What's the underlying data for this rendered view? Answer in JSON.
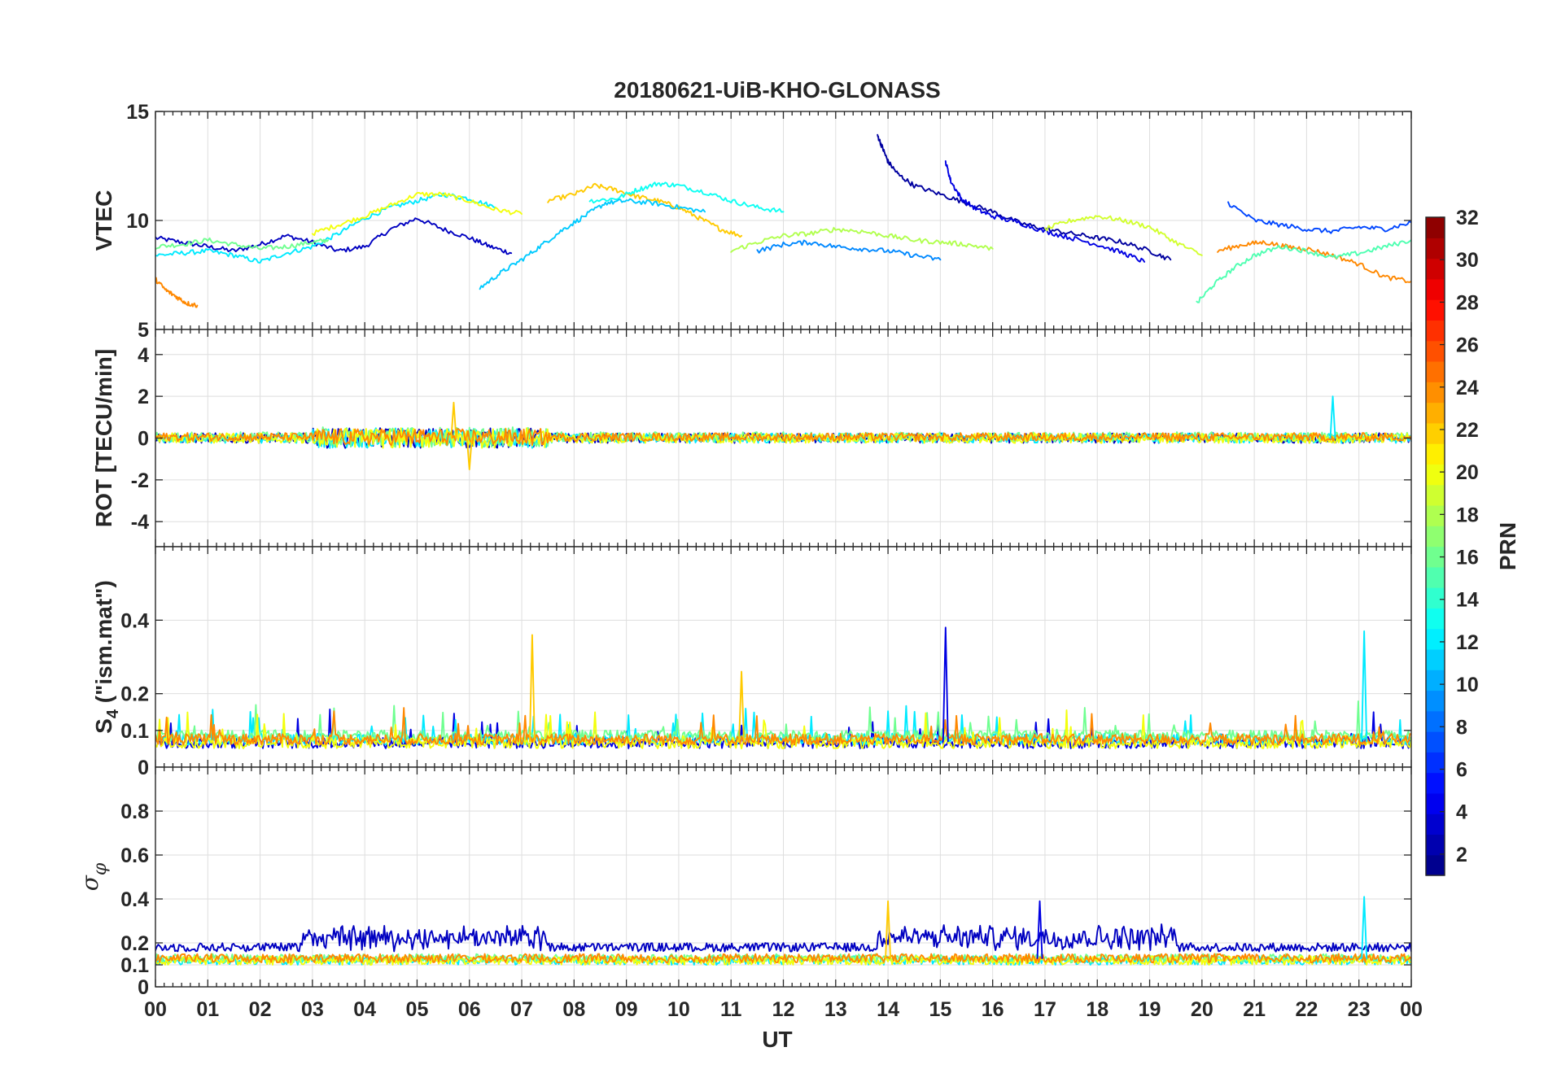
{
  "chart_data": {
    "type": "line",
    "title": "20180621-UiB-KHO-GLONASS",
    "xlabel": "UT",
    "x_tick_labels": [
      "00",
      "01",
      "02",
      "03",
      "04",
      "05",
      "06",
      "07",
      "08",
      "09",
      "10",
      "11",
      "12",
      "13",
      "14",
      "15",
      "16",
      "17",
      "18",
      "19",
      "20",
      "21",
      "22",
      "23",
      "00"
    ],
    "xlim": [
      0,
      24
    ],
    "grid": true,
    "colormap": "jet",
    "colorbar": {
      "label": "PRN",
      "range": [
        1,
        32
      ],
      "ticks": [
        2,
        4,
        6,
        8,
        10,
        12,
        14,
        16,
        18,
        20,
        22,
        24,
        26,
        28,
        30,
        32
      ],
      "placement": "right"
    },
    "panels": [
      {
        "id": "vtec",
        "ylabel": "VTEC",
        "ylim": [
          5,
          15
        ],
        "yticks": [
          5,
          10,
          15
        ],
        "series": [
          {
            "prn": 3,
            "points": [
              [
                0,
                9.2
              ],
              [
                0.5,
                9.0
              ],
              [
                1.0,
                8.8
              ],
              [
                1.5,
                8.6
              ],
              [
                2.0,
                8.9
              ],
              [
                2.5,
                9.3
              ],
              [
                3.0,
                9.0
              ],
              [
                3.5,
                8.6
              ],
              [
                4.0,
                8.8
              ],
              [
                4.5,
                9.6
              ],
              [
                5.0,
                10.1
              ],
              [
                5.5,
                9.6
              ],
              [
                6.0,
                9.2
              ],
              [
                6.4,
                8.8
              ],
              [
                6.8,
                8.5
              ]
            ]
          },
          {
            "prn": 12,
            "points": [
              [
                0,
                8.4
              ],
              [
                0.5,
                8.5
              ],
              [
                1.0,
                8.6
              ],
              [
                1.5,
                8.4
              ],
              [
                2.0,
                8.1
              ],
              [
                2.5,
                8.5
              ],
              [
                3.0,
                8.8
              ],
              [
                3.5,
                9.4
              ],
              [
                4.0,
                10.1
              ],
              [
                4.5,
                10.6
              ],
              [
                5.0,
                10.9
              ],
              [
                5.5,
                11.2
              ],
              [
                6.0,
                11.0
              ],
              [
                6.5,
                10.6
              ]
            ]
          },
          {
            "prn": 16,
            "points": [
              [
                0,
                8.8
              ],
              [
                0.5,
                8.9
              ],
              [
                1.0,
                9.1
              ],
              [
                1.5,
                8.9
              ],
              [
                2.0,
                8.7
              ],
              [
                2.5,
                8.8
              ],
              [
                3.0,
                9.0
              ],
              [
                3.3,
                9.1
              ]
            ]
          },
          {
            "prn": 20,
            "points": [
              [
                3.0,
                9.4
              ],
              [
                3.5,
                9.8
              ],
              [
                4.0,
                10.2
              ],
              [
                4.5,
                10.7
              ],
              [
                5.0,
                11.2
              ],
              [
                5.5,
                11.2
              ],
              [
                6.0,
                10.9
              ],
              [
                6.5,
                10.5
              ],
              [
                7.0,
                10.3
              ]
            ]
          },
          {
            "prn": 22,
            "points": [
              [
                7.5,
                10.9
              ],
              [
                8.0,
                11.2
              ],
              [
                8.4,
                11.6
              ],
              [
                8.8,
                11.4
              ],
              [
                9.2,
                11.1
              ],
              [
                9.6,
                10.9
              ],
              [
                10.0,
                10.6
              ],
              [
                10.4,
                10.1
              ],
              [
                10.8,
                9.6
              ],
              [
                11.2,
                9.3
              ]
            ]
          },
          {
            "prn": 13,
            "points": [
              [
                8.3,
                10.9
              ],
              [
                8.8,
                11.0
              ],
              [
                9.2,
                11.4
              ],
              [
                9.6,
                11.7
              ],
              [
                10.0,
                11.6
              ],
              [
                10.5,
                11.3
              ],
              [
                11.0,
                10.9
              ],
              [
                11.5,
                10.6
              ],
              [
                12.0,
                10.4
              ]
            ]
          },
          {
            "prn": 11,
            "points": [
              [
                6.2,
                6.9
              ],
              [
                6.6,
                7.6
              ],
              [
                7.0,
                8.2
              ],
              [
                7.4,
                8.9
              ],
              [
                7.8,
                9.6
              ],
              [
                8.2,
                10.2
              ],
              [
                8.6,
                10.8
              ],
              [
                9.0,
                10.9
              ],
              [
                9.5,
                10.8
              ],
              [
                10.0,
                10.6
              ],
              [
                10.5,
                10.4
              ]
            ]
          },
          {
            "prn": 2,
            "points": [
              [
                13.8,
                13.9
              ],
              [
                13.9,
                13.3
              ],
              [
                14.0,
                12.7
              ],
              [
                14.2,
                12.1
              ],
              [
                14.5,
                11.6
              ],
              [
                15.0,
                11.2
              ],
              [
                15.5,
                10.8
              ],
              [
                16.0,
                10.4
              ],
              [
                16.5,
                9.9
              ],
              [
                17.0,
                9.6
              ],
              [
                17.5,
                9.4
              ],
              [
                18.0,
                9.2
              ],
              [
                18.5,
                9.0
              ],
              [
                19.0,
                8.6
              ],
              [
                19.4,
                8.2
              ]
            ]
          },
          {
            "prn": 4,
            "points": [
              [
                15.1,
                12.7
              ],
              [
                15.2,
                11.8
              ],
              [
                15.4,
                11.0
              ],
              [
                15.7,
                10.5
              ],
              [
                16.0,
                10.2
              ],
              [
                16.5,
                9.9
              ],
              [
                17.0,
                9.5
              ],
              [
                17.5,
                9.2
              ],
              [
                18.0,
                8.9
              ],
              [
                18.5,
                8.5
              ],
              [
                18.9,
                8.1
              ]
            ]
          },
          {
            "prn": 19,
            "points": [
              [
                17.0,
                9.6
              ],
              [
                17.5,
                10.0
              ],
              [
                18.0,
                10.2
              ],
              [
                18.5,
                10.0
              ],
              [
                19.0,
                9.7
              ],
              [
                19.5,
                9.0
              ],
              [
                20.0,
                8.4
              ]
            ]
          },
          {
            "prn": 7,
            "points": [
              [
                20.5,
                10.8
              ],
              [
                21.0,
                10.0
              ],
              [
                21.5,
                9.8
              ],
              [
                22.0,
                9.6
              ],
              [
                22.5,
                9.5
              ],
              [
                23.0,
                9.7
              ],
              [
                23.5,
                9.6
              ],
              [
                24.0,
                9.9
              ]
            ]
          },
          {
            "prn": 24,
            "points": [
              [
                20.3,
                8.6
              ],
              [
                20.8,
                8.9
              ],
              [
                21.2,
                9.0
              ],
              [
                21.6,
                8.8
              ],
              [
                22.0,
                8.7
              ],
              [
                22.5,
                8.4
              ],
              [
                23.0,
                8.0
              ],
              [
                23.5,
                7.4
              ],
              [
                24.0,
                7.2
              ]
            ]
          },
          {
            "prn": 15,
            "points": [
              [
                19.9,
                6.2
              ],
              [
                20.2,
                7.0
              ],
              [
                20.6,
                7.8
              ],
              [
                21.0,
                8.4
              ],
              [
                21.5,
                8.8
              ],
              [
                22.0,
                8.6
              ],
              [
                22.5,
                8.3
              ],
              [
                23.0,
                8.5
              ],
              [
                23.5,
                8.8
              ],
              [
                24.0,
                9.1
              ]
            ]
          },
          {
            "prn": 9,
            "points": [
              [
                11.5,
                8.6
              ],
              [
                12.0,
                8.9
              ],
              [
                12.5,
                9.0
              ],
              [
                13.0,
                8.8
              ],
              [
                13.5,
                8.7
              ],
              [
                14.0,
                8.6
              ],
              [
                14.5,
                8.4
              ],
              [
                15.0,
                8.2
              ]
            ]
          },
          {
            "prn": 18,
            "points": [
              [
                11.0,
                8.6
              ],
              [
                11.5,
                9.0
              ],
              [
                12.0,
                9.3
              ],
              [
                12.5,
                9.4
              ],
              [
                13.0,
                9.6
              ],
              [
                13.5,
                9.5
              ],
              [
                14.0,
                9.3
              ],
              [
                14.5,
                9.1
              ],
              [
                15.0,
                9.0
              ],
              [
                15.5,
                8.9
              ],
              [
                16.0,
                8.7
              ]
            ]
          },
          {
            "prn": 24,
            "points": [
              [
                0,
                7.3
              ],
              [
                0.2,
                6.8
              ],
              [
                0.4,
                6.5
              ],
              [
                0.6,
                6.2
              ],
              [
                0.8,
                6.1
              ]
            ]
          }
        ]
      },
      {
        "id": "rot",
        "ylabel": "ROT [TECU/min]",
        "ylim": [
          -5.2,
          5.2
        ],
        "yticks": [
          -4,
          -2,
          0,
          2,
          4
        ],
        "series": [
          {
            "prn": 3,
            "baseline": 0.0,
            "spread": 0.3
          },
          {
            "prn": 12,
            "baseline": 0.0,
            "spread": 0.3
          },
          {
            "prn": 16,
            "baseline": 0.05,
            "spread": 0.3
          },
          {
            "prn": 20,
            "baseline": 0.0,
            "spread": 0.3
          },
          {
            "prn": 24,
            "baseline": 0.05,
            "spread": 0.25
          }
        ],
        "peaks": [
          {
            "x": 5.7,
            "y": 1.7
          },
          {
            "x": 22.5,
            "y": 2.0
          },
          {
            "x": 6.0,
            "y": -1.5
          }
        ]
      },
      {
        "id": "s4",
        "ylabel": "S4 (\"ism.mat\")",
        "ylim": [
          0,
          0.6
        ],
        "yticks": [
          0,
          0.1,
          0.2,
          0.4
        ],
        "series": [
          {
            "prn": 4,
            "baseline": 0.06
          },
          {
            "prn": 12,
            "baseline": 0.07
          },
          {
            "prn": 16,
            "baseline": 0.08
          },
          {
            "prn": 20,
            "baseline": 0.06
          },
          {
            "prn": 24,
            "baseline": 0.07
          }
        ],
        "peaks": [
          {
            "x": 15.1,
            "y": 0.38
          },
          {
            "x": 7.2,
            "y": 0.36
          },
          {
            "x": 23.1,
            "y": 0.37
          },
          {
            "x": 11.2,
            "y": 0.26
          }
        ]
      },
      {
        "id": "sigma_phi",
        "ylabel": "σφ",
        "ylim": [
          0,
          1
        ],
        "yticks": [
          0,
          0.1,
          0.2,
          0.4,
          0.6,
          0.8
        ],
        "series": [
          {
            "prn": 3,
            "baseline": 0.18
          },
          {
            "prn": 12,
            "baseline": 0.12
          },
          {
            "prn": 16,
            "baseline": 0.13
          },
          {
            "prn": 20,
            "baseline": 0.12
          },
          {
            "prn": 24,
            "baseline": 0.13
          }
        ],
        "peaks": [
          {
            "x": 14.0,
            "y": 0.39
          },
          {
            "x": 23.1,
            "y": 0.41
          },
          {
            "x": 16.9,
            "y": 0.39
          }
        ]
      }
    ]
  }
}
